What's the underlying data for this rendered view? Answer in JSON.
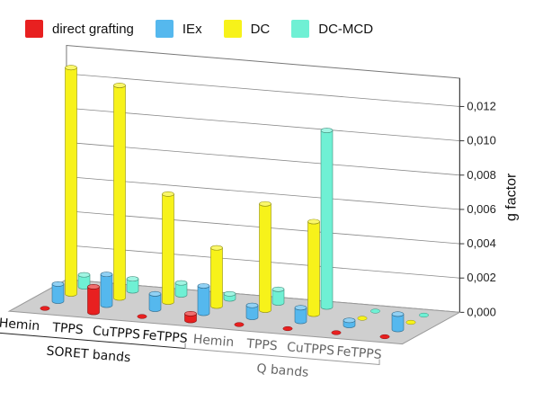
{
  "chart_data": {
    "type": "bar",
    "style": "3d",
    "legend": [
      "direct grafting",
      "IEx",
      "DC",
      "DC-MCD"
    ],
    "colors": {
      "direct grafting": "#e82020",
      "IEx": "#55b8ee",
      "DC": "#f7f21a",
      "DC-MCD": "#6ff0d4"
    },
    "ylabel": "g factor",
    "ylim": [
      0,
      0.013
    ],
    "yticks": [
      "0,000",
      "0,002",
      "0,004",
      "0,006",
      "0,008",
      "0,010",
      "0,012"
    ],
    "categories": [
      "Hemin",
      "TPPS",
      "CuTPPS",
      "FeTPPS",
      "Hemin",
      "TPPS",
      "CuTPPS",
      "FeTPPS"
    ],
    "groups": [
      {
        "label": "SORET bands",
        "categories": [
          "Hemin",
          "TPPS",
          "CuTPPS",
          "FeTPPS"
        ]
      },
      {
        "label": "Q bands",
        "categories": [
          "Hemin",
          "TPPS",
          "CuTPPS",
          "FeTPPS"
        ]
      }
    ],
    "series": [
      {
        "name": "direct grafting",
        "values": [
          0.0,
          0.0015,
          0.0,
          0.0004,
          0.0,
          0.0,
          0.0,
          0.0
        ]
      },
      {
        "name": "IEx",
        "values": [
          0.001,
          0.0018,
          0.0009,
          0.0016,
          0.0007,
          0.0008,
          0.0003,
          0.0009
        ]
      },
      {
        "name": "DC",
        "values": [
          0.0132,
          0.0124,
          0.0063,
          0.0034,
          0.0062,
          0.0054,
          0.0,
          0.0
        ]
      },
      {
        "name": "DC-MCD",
        "values": [
          0.0007,
          0.0007,
          0.0007,
          0.0003,
          0.0008,
          0.0103,
          0.0,
          0.0
        ]
      }
    ],
    "grid": true
  }
}
